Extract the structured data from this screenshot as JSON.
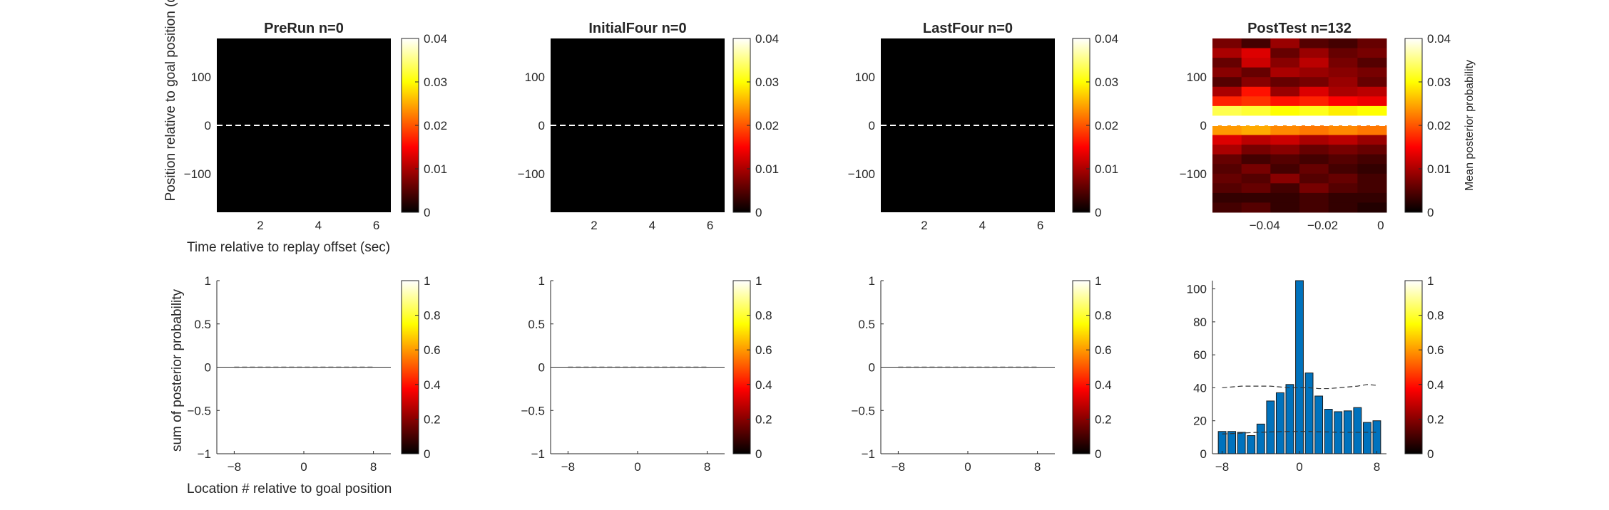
{
  "figure": {
    "shared_labels": {
      "heatmap_ylabel": "Position relative to goal position (deg)",
      "heatmap_xlabel": "Time relative to replay offset (sec)",
      "hist_ylabel": "sum of posterior probability",
      "hist_xlabel": "Location # relative to goal position",
      "colorbar_label": "Mean posterior probability"
    }
  },
  "chart_data": [
    {
      "type": "heatmap",
      "panel": "heatmap",
      "col": 0,
      "title": "PreRun n=0",
      "xticks": [
        2,
        4,
        6
      ],
      "xlim": [
        0.5,
        6.5
      ],
      "yticks": [
        100,
        0,
        -100
      ],
      "ylim": [
        -180,
        180
      ],
      "values": "all zero",
      "dashed_line_y": 0,
      "colorbar": {
        "colormap": "hot",
        "ticks": [
          0,
          0.01,
          0.02,
          0.03,
          0.04
        ],
        "range": [
          0,
          0.04
        ]
      }
    },
    {
      "type": "heatmap",
      "panel": "heatmap",
      "col": 1,
      "title": "InitialFour n=0",
      "xticks": [
        2,
        4,
        6
      ],
      "xlim": [
        0.5,
        6.5
      ],
      "yticks": [
        100,
        0,
        -100
      ],
      "ylim": [
        -180,
        180
      ],
      "values": "all zero",
      "dashed_line_y": 0,
      "colorbar": {
        "colormap": "hot",
        "ticks": [
          0,
          0.01,
          0.02,
          0.03,
          0.04
        ],
        "range": [
          0,
          0.04
        ]
      }
    },
    {
      "type": "heatmap",
      "panel": "heatmap",
      "col": 2,
      "title": "LastFour n=0",
      "xticks": [
        2,
        4,
        6
      ],
      "xlim": [
        0.5,
        6.5
      ],
      "yticks": [
        100,
        0,
        -100
      ],
      "ylim": [
        -180,
        180
      ],
      "values": "all zero",
      "dashed_line_y": 0,
      "colorbar": {
        "colormap": "hot",
        "ticks": [
          0,
          0.01,
          0.02,
          0.03,
          0.04
        ],
        "range": [
          0,
          0.04
        ]
      }
    },
    {
      "type": "heatmap",
      "panel": "heatmap",
      "col": 3,
      "title": "PostTest n=132",
      "xticks": [
        -0.04,
        -0.02,
        0
      ],
      "xlim": [
        -0.058,
        0.002
      ],
      "yticks": [
        100,
        0,
        -100
      ],
      "ylim": [
        -180,
        180
      ],
      "x_bin_edges": [
        -0.058,
        -0.048,
        -0.038,
        -0.028,
        -0.018,
        -0.008,
        0.002
      ],
      "y_bin_count": 18,
      "values": [
        [
          0.007,
          0.004,
          0.009,
          0.005,
          0.004,
          0.006
        ],
        [
          0.01,
          0.013,
          0.006,
          0.009,
          0.006,
          0.007
        ],
        [
          0.006,
          0.012,
          0.008,
          0.011,
          0.007,
          0.005
        ],
        [
          0.008,
          0.006,
          0.01,
          0.009,
          0.008,
          0.007
        ],
        [
          0.005,
          0.008,
          0.006,
          0.007,
          0.009,
          0.006
        ],
        [
          0.01,
          0.016,
          0.009,
          0.013,
          0.01,
          0.011
        ],
        [
          0.017,
          0.018,
          0.016,
          0.017,
          0.015,
          0.014
        ],
        [
          0.033,
          0.032,
          0.03,
          0.031,
          0.029,
          0.03
        ],
        [
          0.04,
          0.04,
          0.04,
          0.04,
          0.04,
          0.04
        ],
        [
          0.024,
          0.025,
          0.023,
          0.022,
          0.023,
          0.022
        ],
        [
          0.013,
          0.011,
          0.012,
          0.01,
          0.011,
          0.009
        ],
        [
          0.01,
          0.007,
          0.008,
          0.006,
          0.007,
          0.006
        ],
        [
          0.006,
          0.004,
          0.005,
          0.004,
          0.005,
          0.004
        ],
        [
          0.005,
          0.007,
          0.004,
          0.006,
          0.004,
          0.003
        ],
        [
          0.006,
          0.005,
          0.008,
          0.005,
          0.006,
          0.004
        ],
        [
          0.005,
          0.006,
          0.004,
          0.007,
          0.005,
          0.004
        ],
        [
          0.003,
          0.003,
          0.003,
          0.004,
          0.003,
          0.003
        ],
        [
          0.004,
          0.005,
          0.003,
          0.004,
          0.003,
          0.002
        ]
      ],
      "dashed_line_y": 0,
      "colorbar": {
        "colormap": "hot",
        "ticks": [
          0,
          0.01,
          0.02,
          0.03,
          0.04
        ],
        "range": [
          0,
          0.04
        ]
      }
    },
    {
      "type": "bar",
      "panel": "hist",
      "col": 0,
      "xticks": [
        -8,
        0,
        8
      ],
      "xlim": [
        -10,
        10
      ],
      "yticks": [
        1,
        0.5,
        0,
        -0.5,
        -1
      ],
      "ylim": [
        -1,
        1
      ],
      "categories": [
        -8,
        -7,
        -6,
        -5,
        -4,
        -3,
        -2,
        -1,
        0,
        1,
        2,
        3,
        4,
        5,
        6,
        7,
        8
      ],
      "values": [
        0,
        0,
        0,
        0,
        0,
        0,
        0,
        0,
        0,
        0,
        0,
        0,
        0,
        0,
        0,
        0,
        0
      ],
      "dashed_upper": [
        0,
        0,
        0,
        0,
        0,
        0,
        0,
        0,
        0,
        0,
        0,
        0,
        0,
        0,
        0,
        0,
        0
      ],
      "dashed_lower": [
        0,
        0,
        0,
        0,
        0,
        0,
        0,
        0,
        0,
        0,
        0,
        0,
        0,
        0,
        0,
        0,
        0
      ],
      "colorbar": {
        "colormap": "hot",
        "ticks": [
          0,
          0.2,
          0.4,
          0.6,
          0.8,
          1
        ],
        "range": [
          0,
          1
        ]
      }
    },
    {
      "type": "bar",
      "panel": "hist",
      "col": 1,
      "xticks": [
        -8,
        0,
        8
      ],
      "xlim": [
        -10,
        10
      ],
      "yticks": [
        1,
        0.5,
        0,
        -0.5,
        -1
      ],
      "ylim": [
        -1,
        1
      ],
      "categories": [
        -8,
        -7,
        -6,
        -5,
        -4,
        -3,
        -2,
        -1,
        0,
        1,
        2,
        3,
        4,
        5,
        6,
        7,
        8
      ],
      "values": [
        0,
        0,
        0,
        0,
        0,
        0,
        0,
        0,
        0,
        0,
        0,
        0,
        0,
        0,
        0,
        0,
        0
      ],
      "dashed_upper": [
        0,
        0,
        0,
        0,
        0,
        0,
        0,
        0,
        0,
        0,
        0,
        0,
        0,
        0,
        0,
        0,
        0
      ],
      "dashed_lower": [
        0,
        0,
        0,
        0,
        0,
        0,
        0,
        0,
        0,
        0,
        0,
        0,
        0,
        0,
        0,
        0,
        0
      ],
      "colorbar": {
        "colormap": "hot",
        "ticks": [
          0,
          0.2,
          0.4,
          0.6,
          0.8,
          1
        ],
        "range": [
          0,
          1
        ]
      }
    },
    {
      "type": "bar",
      "panel": "hist",
      "col": 2,
      "xticks": [
        -8,
        0,
        8
      ],
      "xlim": [
        -10,
        10
      ],
      "yticks": [
        1,
        0.5,
        0,
        -0.5,
        -1
      ],
      "ylim": [
        -1,
        1
      ],
      "categories": [
        -8,
        -7,
        -6,
        -5,
        -4,
        -3,
        -2,
        -1,
        0,
        1,
        2,
        3,
        4,
        5,
        6,
        7,
        8
      ],
      "values": [
        0,
        0,
        0,
        0,
        0,
        0,
        0,
        0,
        0,
        0,
        0,
        0,
        0,
        0,
        0,
        0,
        0
      ],
      "dashed_upper": [
        0,
        0,
        0,
        0,
        0,
        0,
        0,
        0,
        0,
        0,
        0,
        0,
        0,
        0,
        0,
        0,
        0
      ],
      "dashed_lower": [
        0,
        0,
        0,
        0,
        0,
        0,
        0,
        0,
        0,
        0,
        0,
        0,
        0,
        0,
        0,
        0,
        0
      ],
      "colorbar": {
        "colormap": "hot",
        "ticks": [
          0,
          0.2,
          0.4,
          0.6,
          0.8,
          1
        ],
        "range": [
          0,
          1
        ]
      }
    },
    {
      "type": "bar",
      "panel": "hist",
      "col": 3,
      "xticks": [
        -8,
        0,
        8
      ],
      "xlim": [
        -9,
        9
      ],
      "yticks": [
        100,
        80,
        60,
        40,
        20,
        0
      ],
      "ylim": [
        0,
        105
      ],
      "categories": [
        -8,
        -7,
        -6,
        -5,
        -4,
        -3,
        -2,
        -1,
        0,
        1,
        2,
        3,
        4,
        5,
        6,
        7,
        8
      ],
      "values": [
        13.5,
        13.5,
        13,
        11,
        18,
        32,
        37,
        42,
        105,
        49,
        35,
        27,
        25.5,
        26,
        28,
        19,
        20
      ],
      "bar_color": "#0072BD",
      "dashed_upper": [
        40,
        40.5,
        41,
        41,
        41,
        41,
        40.5,
        40,
        40,
        40,
        39.5,
        39.5,
        40,
        40.5,
        41,
        42,
        41.5
      ],
      "dashed_lower": [
        12,
        12.2,
        12.5,
        12.8,
        13,
        13.2,
        13.4,
        13.5,
        13.5,
        13.5,
        13.3,
        13.2,
        13,
        13,
        13,
        13,
        13
      ],
      "colorbar": {
        "colormap": "hot",
        "ticks": [
          0,
          0.2,
          0.4,
          0.6,
          0.8,
          1
        ],
        "range": [
          0,
          1
        ]
      }
    }
  ]
}
